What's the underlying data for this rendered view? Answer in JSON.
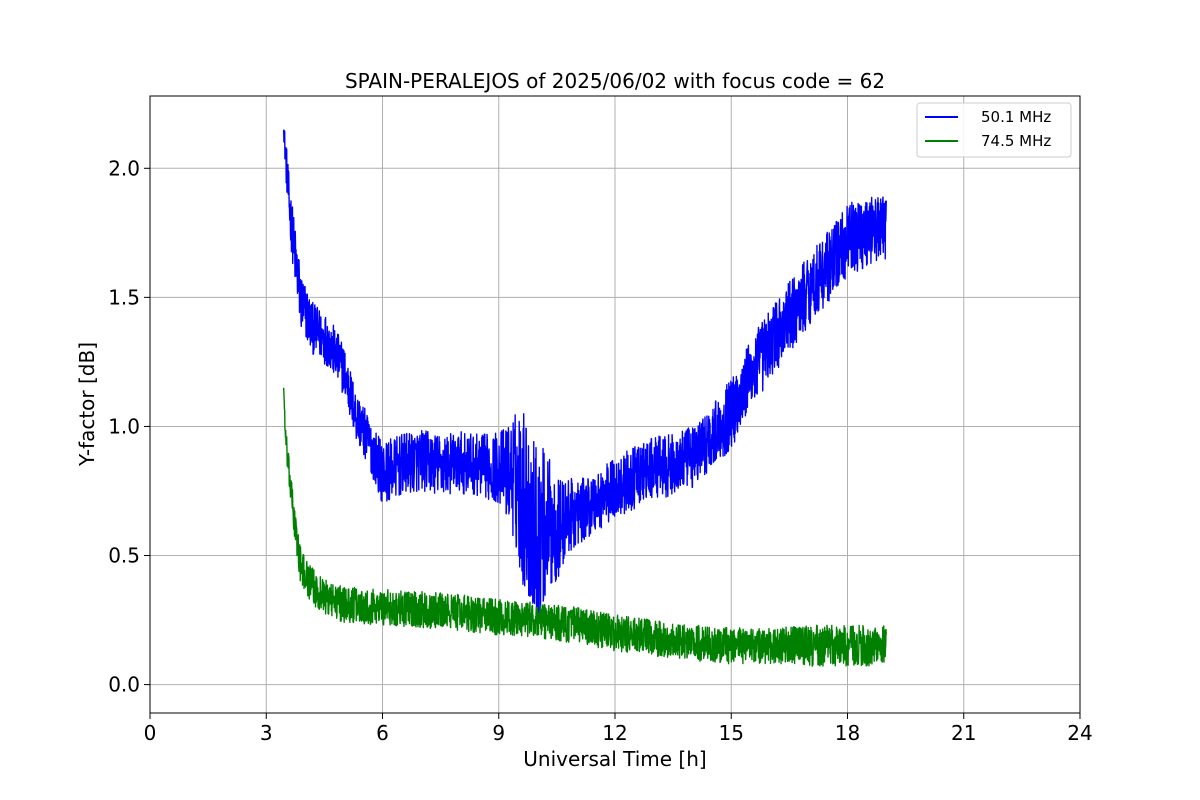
{
  "chart_data": {
    "type": "line",
    "title": "SPAIN-PERALEJOS of 2025/06/02 with focus code = 62",
    "xlabel": "Universal Time [h]",
    "ylabel": "Y-factor [dB]",
    "xlim": [
      0,
      24
    ],
    "ylim": [
      -0.11,
      2.28
    ],
    "xticks": [
      0,
      3,
      6,
      9,
      12,
      15,
      18,
      21,
      24
    ],
    "xtick_labels": [
      "0",
      "3",
      "6",
      "9",
      "12",
      "15",
      "18",
      "21",
      "24"
    ],
    "yticks": [
      0.0,
      0.5,
      1.0,
      1.5,
      2.0
    ],
    "ytick_labels": [
      "0.0",
      "0.5",
      "1.0",
      "1.5",
      "2.0"
    ],
    "grid": true,
    "legend_position": "top-right",
    "series": [
      {
        "name": "50.1 MHz",
        "color": "#0000ff",
        "x": [
          3.45,
          3.5,
          3.6,
          3.75,
          3.9,
          4.2,
          4.6,
          5.0,
          5.3,
          5.7,
          6.0,
          6.5,
          7.0,
          7.5,
          8.0,
          8.5,
          9.0,
          9.3,
          9.6,
          9.8,
          10.0,
          10.2,
          10.5,
          10.8,
          11.2,
          11.6,
          12.0,
          12.5,
          13.0,
          13.5,
          14.0,
          14.5,
          15.0,
          15.5,
          16.0,
          16.5,
          17.0,
          17.5,
          18.0,
          18.5,
          19.0
        ],
        "y": [
          2.15,
          2.05,
          1.85,
          1.65,
          1.48,
          1.38,
          1.33,
          1.22,
          1.05,
          0.92,
          0.82,
          0.85,
          0.87,
          0.85,
          0.86,
          0.85,
          0.84,
          0.82,
          0.75,
          0.65,
          0.58,
          0.62,
          0.6,
          0.65,
          0.68,
          0.72,
          0.76,
          0.8,
          0.84,
          0.85,
          0.88,
          0.96,
          1.05,
          1.2,
          1.32,
          1.42,
          1.53,
          1.62,
          1.72,
          1.76,
          1.77
        ],
        "noise_amplitude": [
          0.03,
          0.08,
          0.1,
          0.12,
          0.12,
          0.1,
          0.1,
          0.1,
          0.1,
          0.1,
          0.12,
          0.12,
          0.12,
          0.12,
          0.12,
          0.12,
          0.14,
          0.2,
          0.35,
          0.35,
          0.35,
          0.3,
          0.2,
          0.15,
          0.12,
          0.12,
          0.12,
          0.12,
          0.12,
          0.12,
          0.12,
          0.12,
          0.14,
          0.14,
          0.14,
          0.14,
          0.14,
          0.14,
          0.14,
          0.14,
          0.12
        ]
      },
      {
        "name": "74.5 MHz",
        "color": "#008000",
        "x": [
          3.45,
          3.5,
          3.6,
          3.75,
          3.9,
          4.2,
          4.6,
          5.0,
          6.0,
          7.0,
          8.0,
          9.0,
          10.0,
          11.0,
          12.0,
          13.0,
          14.0,
          15.0,
          16.0,
          17.0,
          18.0,
          19.0
        ],
        "y": [
          1.15,
          0.95,
          0.8,
          0.6,
          0.45,
          0.38,
          0.33,
          0.31,
          0.3,
          0.29,
          0.28,
          0.26,
          0.25,
          0.23,
          0.2,
          0.18,
          0.16,
          0.15,
          0.15,
          0.15,
          0.15,
          0.15
        ],
        "noise_amplitude": [
          0.02,
          0.05,
          0.06,
          0.07,
          0.07,
          0.07,
          0.07,
          0.07,
          0.07,
          0.07,
          0.07,
          0.07,
          0.07,
          0.07,
          0.07,
          0.07,
          0.07,
          0.07,
          0.07,
          0.08,
          0.08,
          0.08
        ]
      }
    ]
  }
}
